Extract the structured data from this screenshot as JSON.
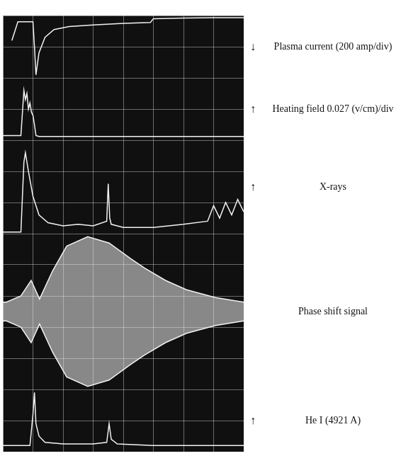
{
  "chart_data": [
    {
      "type": "line",
      "title": "Plasma current (200 amp/div)",
      "annotation": "↓",
      "color": "#f2f2f2",
      "grid": true,
      "tick_labels": false,
      "xlim": [
        0,
        8
      ],
      "xticks": [
        0,
        1,
        2,
        3,
        4,
        5,
        6,
        7,
        8
      ],
      "ylim": [
        0,
        2
      ],
      "yticks": [
        0,
        1,
        2
      ],
      "x": [
        0.3,
        0.5,
        0.8,
        1.0,
        1.05,
        1.1,
        1.2,
        1.4,
        1.7,
        2.2,
        3,
        4,
        4.9,
        5.0,
        6,
        7,
        8
      ],
      "values": [
        1.2,
        1.8,
        1.8,
        1.8,
        1.0,
        0.1,
        0.8,
        1.3,
        1.55,
        1.65,
        1.7,
        1.75,
        1.78,
        1.9,
        1.92,
        1.93,
        1.93
      ]
    },
    {
      "type": "line",
      "title": "Heating field 0.027 (v/cm)/div",
      "annotation": "↑",
      "color": "#f2f2f2",
      "grid": true,
      "tick_labels": false,
      "xlim": [
        0,
        8
      ],
      "xticks": [
        0,
        1,
        2,
        3,
        4,
        5,
        6,
        7,
        8
      ],
      "ylim": [
        0,
        2
      ],
      "yticks": [
        0,
        1,
        2
      ],
      "x": [
        0,
        0.6,
        0.7,
        0.75,
        0.8,
        0.85,
        0.9,
        0.95,
        1.0,
        1.05,
        1.1,
        1.2,
        2,
        4,
        6,
        8
      ],
      "values": [
        0.15,
        0.15,
        1.6,
        1.3,
        1.5,
        1.0,
        1.2,
        0.9,
        0.8,
        0.5,
        0.15,
        0.12,
        0.12,
        0.12,
        0.12,
        0.12
      ]
    },
    {
      "type": "line",
      "title": "X-rays",
      "annotation": "↑",
      "color": "#f2f2f2",
      "grid": true,
      "tick_labels": false,
      "xlim": [
        0,
        8
      ],
      "xticks": [
        0,
        1,
        2,
        3,
        4,
        5,
        6,
        7,
        8
      ],
      "ylim": [
        0,
        3
      ],
      "yticks": [
        0,
        1,
        2,
        3
      ],
      "x": [
        0,
        0.6,
        0.7,
        0.75,
        0.85,
        1.0,
        1.2,
        1.5,
        2,
        2.5,
        3,
        3.45,
        3.5,
        3.55,
        3.6,
        4,
        5,
        6,
        6.8,
        7.0,
        7.2,
        7.4,
        7.6,
        7.8,
        8
      ],
      "values": [
        0.05,
        0.05,
        2.3,
        2.6,
        2.0,
        1.2,
        0.6,
        0.35,
        0.25,
        0.3,
        0.25,
        0.4,
        1.6,
        0.5,
        0.3,
        0.2,
        0.2,
        0.3,
        0.4,
        0.9,
        0.5,
        1.0,
        0.6,
        1.1,
        0.7
      ]
    },
    {
      "type": "line",
      "title": "Phase shift signal",
      "grid": true,
      "tick_labels": false,
      "xlim": [
        0,
        8
      ],
      "xticks": [
        0,
        1,
        2,
        3,
        4,
        5,
        6,
        7,
        8
      ],
      "ylim": [
        -2.5,
        2.5
      ],
      "yticks": [
        -2.5,
        -1.5,
        -0.5,
        0.5,
        1.5,
        2.5
      ],
      "x": [
        0,
        0.12,
        0.6,
        0.94,
        1.22,
        1.65,
        2.12,
        2.82,
        3.53,
        4.24,
        4.7,
        5.4,
        6.1,
        7.06,
        8
      ],
      "series": [
        {
          "color": "#f2f2f2",
          "values": [
            0.3,
            0.3,
            0.5,
            1.0,
            0.4,
            1.3,
            2.1,
            2.4,
            2.2,
            1.7,
            1.4,
            1.0,
            0.7,
            0.45,
            0.3
          ]
        },
        {
          "color": "#f2f2f2",
          "values": [
            -0.3,
            -0.3,
            -0.5,
            -1.0,
            -0.4,
            -1.3,
            -2.1,
            -2.4,
            -2.2,
            -1.7,
            -1.4,
            -1.0,
            -0.7,
            -0.45,
            -0.3
          ]
        }
      ]
    },
    {
      "type": "line",
      "title": "He I (4921 A)",
      "annotation": "↑",
      "color": "#f2f2f2",
      "grid": true,
      "tick_labels": false,
      "xlim": [
        0,
        8
      ],
      "xticks": [
        0,
        1,
        2,
        3,
        4,
        5,
        6,
        7,
        8
      ],
      "ylim": [
        0,
        2
      ],
      "yticks": [
        0,
        1,
        2
      ],
      "x": [
        0,
        0.9,
        1.0,
        1.05,
        1.1,
        1.2,
        1.4,
        2,
        3,
        3.45,
        3.53,
        3.6,
        3.8,
        5,
        8
      ],
      "values": [
        0.2,
        0.2,
        1.2,
        1.9,
        0.9,
        0.5,
        0.3,
        0.25,
        0.25,
        0.3,
        0.9,
        0.4,
        0.25,
        0.2,
        0.2
      ]
    }
  ]
}
